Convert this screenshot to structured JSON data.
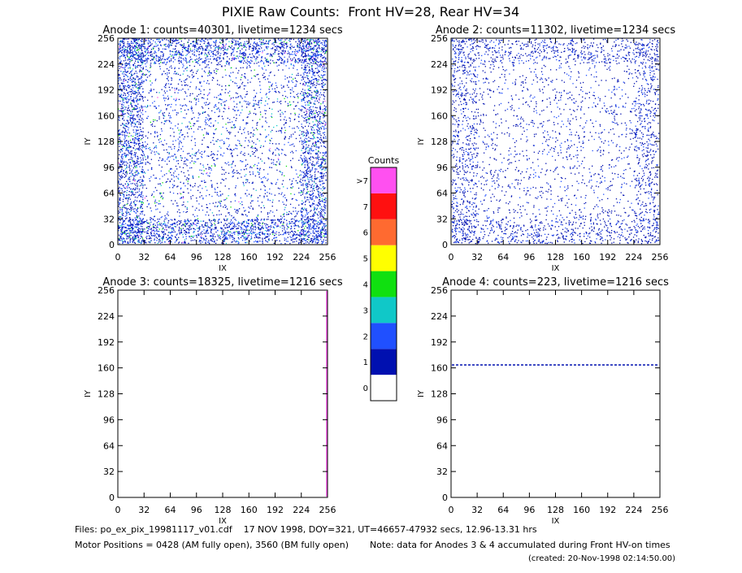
{
  "title": "PIXIE Raw Counts:  Front HV=28, Rear HV=34",
  "panels": [
    {
      "title": "Anode 1: counts=40301, livetime=1234 secs",
      "xlabel": "IX",
      "ylabel": "IY",
      "xlim": [
        0,
        256
      ],
      "ylim": [
        0,
        256
      ],
      "xticks": [
        0,
        32,
        64,
        96,
        128,
        160,
        192,
        224,
        256
      ],
      "yticks": [
        0,
        32,
        64,
        96,
        128,
        160,
        192,
        224,
        256
      ]
    },
    {
      "title": "Anode 2: counts=11302, livetime=1234 secs",
      "xlabel": "IX",
      "ylabel": "IY",
      "xlim": [
        0,
        256
      ],
      "ylim": [
        0,
        256
      ],
      "xticks": [
        0,
        32,
        64,
        96,
        128,
        160,
        192,
        224,
        256
      ],
      "yticks": [
        0,
        32,
        64,
        96,
        128,
        160,
        192,
        224,
        256
      ]
    },
    {
      "title": "Anode 3: counts=18325, livetime=1216 secs",
      "xlabel": "IX",
      "ylabel": "IY",
      "xlim": [
        0,
        256
      ],
      "ylim": [
        0,
        256
      ],
      "xticks": [
        0,
        32,
        64,
        96,
        128,
        160,
        192,
        224,
        256
      ],
      "yticks": [
        0,
        32,
        64,
        96,
        128,
        160,
        192,
        224,
        256
      ]
    },
    {
      "title": "Anode 4: counts=223, livetime=1216 secs",
      "xlabel": "IX",
      "ylabel": "IY",
      "xlim": [
        0,
        256
      ],
      "ylim": [
        0,
        256
      ],
      "xticks": [
        0,
        32,
        64,
        96,
        128,
        160,
        192,
        224,
        256
      ],
      "yticks": [
        0,
        32,
        64,
        96,
        128,
        160,
        192,
        224,
        256
      ]
    }
  ],
  "colorbar": {
    "title": "Counts",
    "labels": [
      "0",
      "1",
      "2",
      "3",
      "4",
      "5",
      "6",
      "7",
      ">7"
    ],
    "colors": [
      "#ffffff",
      "#0010b0",
      "#2050ff",
      "#10c8c8",
      "#10e010",
      "#ffff00",
      "#ff6a30",
      "#ff1010",
      "#ff50f0"
    ]
  },
  "footer": {
    "files": "Files: po_ex_pix_19981117_v01.cdf    17 NOV 1998, DOY=321, UT=46657-47932 secs, 12.96-13.31 hrs",
    "motor": "Motor Positions = 0428 (AM fully open), 3560 (BM fully open)",
    "note": "Note: data for Anodes 3 & 4 accumulated during Front HV-on times",
    "created": "(created: 20-Nov-1998 02:14:50.00)"
  }
}
